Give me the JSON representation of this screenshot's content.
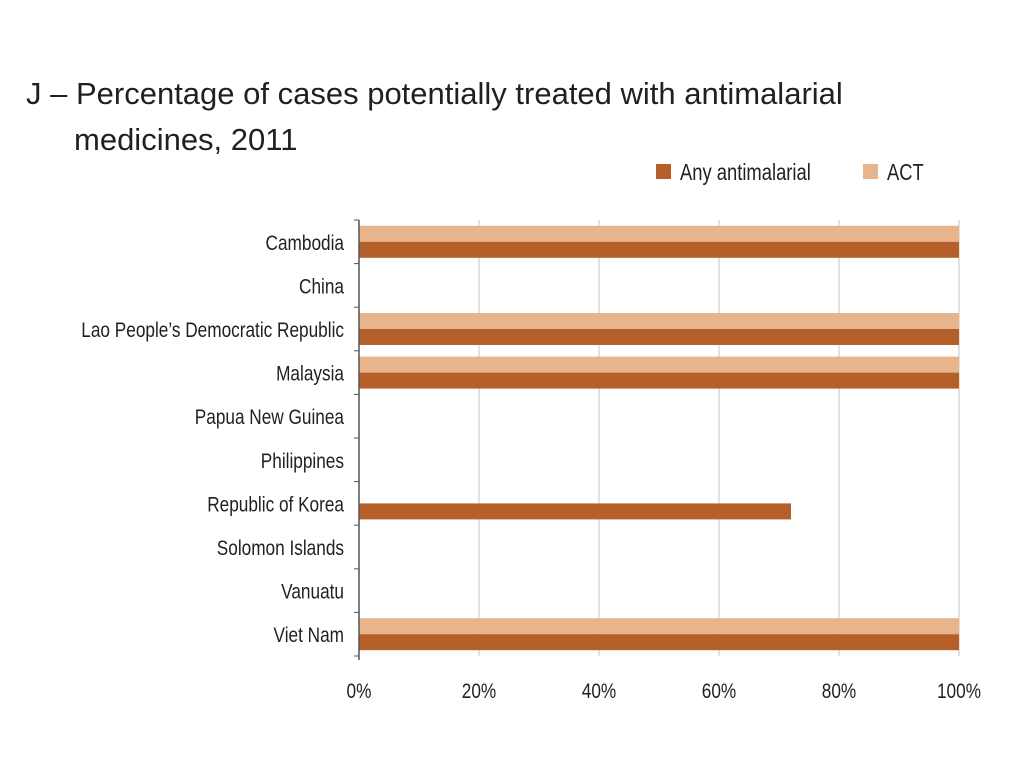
{
  "title_lines": [
    "J – Percentage of cases potentially treated with antimalarial",
    "medicines, 2011"
  ],
  "colors": {
    "any_antimalarial": "#b5602b",
    "act": "#e8b48c",
    "grid": "#d9d9d9",
    "axis": "#555555",
    "text": "#231f20"
  },
  "chart_data": {
    "type": "bar",
    "orientation": "horizontal",
    "title": "J – Percentage of cases potentially treated with antimalarial medicines, 2011",
    "xlabel": "",
    "ylabel": "",
    "xlim": [
      0,
      100
    ],
    "x_ticks": [
      "0%",
      "20%",
      "40%",
      "60%",
      "80%",
      "100%"
    ],
    "x_tick_values": [
      0,
      20,
      40,
      60,
      80,
      100
    ],
    "grid": true,
    "legend_placement": "top-right",
    "categories": [
      "Cambodia",
      "China",
      "Lao People’s Democratic Republic",
      "Malaysia",
      "Papua New Guinea",
      "Philippines",
      "Republic of Korea",
      "Solomon Islands",
      "Vanuatu",
      "Viet Nam"
    ],
    "series": [
      {
        "name": "Any antimalarial",
        "color": "#b5602b",
        "values": [
          100,
          0,
          100,
          100,
          0,
          0,
          72,
          0,
          0,
          100
        ]
      },
      {
        "name": "ACT",
        "color": "#e8b48c",
        "values": [
          100,
          0,
          100,
          100,
          0,
          0,
          0,
          0,
          0,
          100
        ]
      }
    ]
  }
}
